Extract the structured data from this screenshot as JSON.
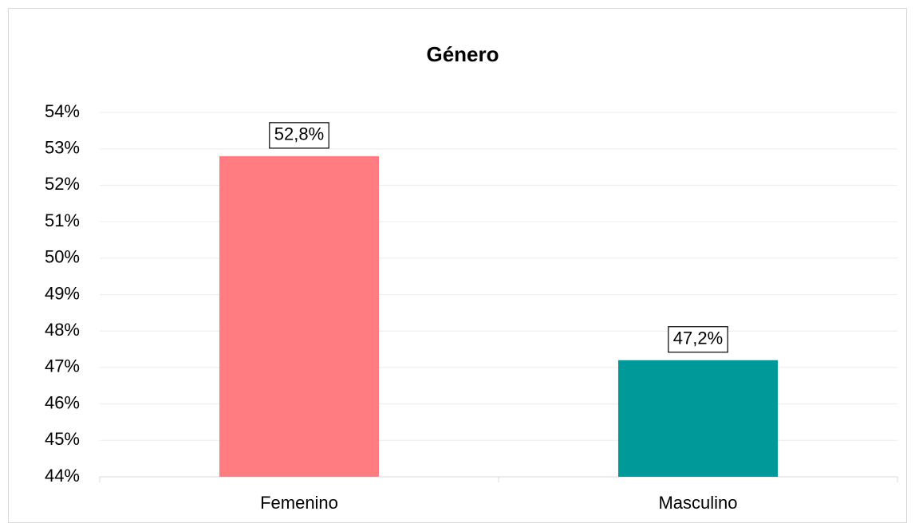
{
  "chart_data": {
    "type": "bar",
    "title": "Género",
    "categories": [
      "Femenino",
      "Masculino"
    ],
    "values": [
      52.8,
      47.2
    ],
    "value_labels": [
      "52,8%",
      "47,2%"
    ],
    "colors": [
      "#ff7c80",
      "#009999"
    ],
    "ylim": [
      44,
      54
    ],
    "yticks": [
      {
        "value": 44,
        "label": "44%"
      },
      {
        "value": 45,
        "label": "45%"
      },
      {
        "value": 46,
        "label": "46%"
      },
      {
        "value": 47,
        "label": "47%"
      },
      {
        "value": 48,
        "label": "48%"
      },
      {
        "value": 49,
        "label": "49%"
      },
      {
        "value": 50,
        "label": "50%"
      },
      {
        "value": 51,
        "label": "51%"
      },
      {
        "value": 52,
        "label": "52%"
      },
      {
        "value": 53,
        "label": "53%"
      },
      {
        "value": 54,
        "label": "54%"
      }
    ],
    "grid": true
  }
}
